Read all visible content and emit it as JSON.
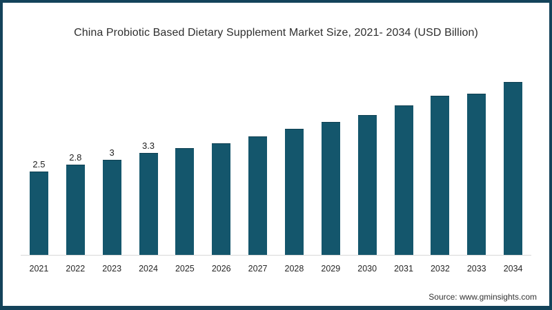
{
  "chart_data": {
    "type": "bar",
    "title": "China Probiotic Based Dietary Supplement Market Size, 2021- 2034 (USD Billion)",
    "categories": [
      "2021",
      "2022",
      "2023",
      "2024",
      "2025",
      "2026",
      "2027",
      "2028",
      "2029",
      "2030",
      "2031",
      "2032",
      "2033",
      "2034"
    ],
    "values": [
      2.5,
      2.8,
      3,
      3.3,
      3.5,
      3.7,
      4.0,
      4.3,
      4.6,
      4.9,
      5.3,
      5.7,
      5.8,
      6.3
    ],
    "bar_labels": [
      "2.5",
      "2.8",
      "3",
      "3.3",
      "",
      "",
      "",
      "",
      "",
      "",
      "",
      "",
      "",
      ""
    ],
    "xlabel": "",
    "ylabel": "",
    "grid": false,
    "legend_position": "none",
    "y_axis_visible": false
  },
  "source": {
    "text": "Source: www.gminsights.com"
  },
  "colors": {
    "bar_fill": "#14566c",
    "bar_edge": "#0e3f51",
    "frame_border": "#14435a",
    "axis_line": "#d8d8d8",
    "text": "#2e2e2e"
  }
}
